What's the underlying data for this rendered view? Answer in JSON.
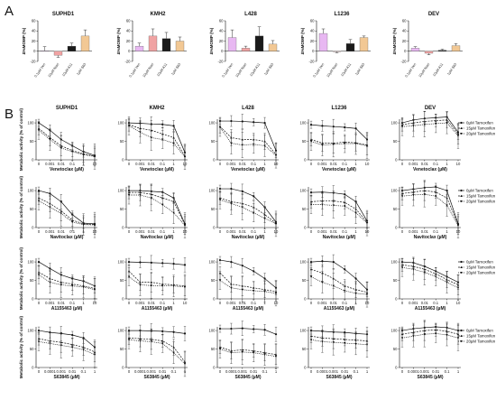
{
  "panels": {
    "a_label": "A",
    "b_label": "B"
  },
  "cell_lines": [
    "SUPHD1",
    "KMH2",
    "L428",
    "L1236",
    "DEV"
  ],
  "colors": {
    "bars": [
      "#f2c894",
      "#f0a3a3",
      "#1a1a1a",
      "#f2c894"
    ],
    "line": "#111111"
  },
  "chart_data": [
    {
      "panel": "A",
      "type": "bar",
      "ylabel": "∆%MOMP (%)",
      "ylim": [
        -20,
        60
      ],
      "yticks": [
        -20,
        0,
        20,
        40,
        60
      ],
      "categories": [
        "0.1µM Ven",
        "10µM Navi",
        "10µM A11",
        "1µM S63"
      ],
      "bar_colors": [
        "#e8b8f2",
        "#f0a3a3",
        "#1a1a1a",
        "#f2c894"
      ],
      "series": [
        {
          "cell_line": "SUPHD1",
          "values": [
            1,
            -8,
            10,
            30
          ],
          "errors": [
            8,
            4,
            6,
            12
          ]
        },
        {
          "cell_line": "KMH2",
          "values": [
            10,
            30,
            25,
            20
          ],
          "errors": [
            6,
            14,
            12,
            8
          ]
        },
        {
          "cell_line": "L428",
          "values": [
            27,
            6,
            30,
            14
          ],
          "errors": [
            15,
            4,
            18,
            7
          ]
        },
        {
          "cell_line": "L1236",
          "values": [
            35,
            -1,
            15,
            27
          ],
          "errors": [
            9,
            2,
            8,
            3
          ]
        },
        {
          "cell_line": "DEV",
          "values": [
            6,
            -4,
            2,
            11
          ],
          "errors": [
            3,
            3,
            2,
            4
          ]
        }
      ]
    },
    {
      "panel": "B",
      "type": "line",
      "ylabel": "Metabolic activity (% of control)",
      "legend": [
        "0µM Tamoxifen",
        "15µM Tamoxifen",
        "20µM Tamoxifen"
      ],
      "legend_position": "right",
      "ylim": [
        0,
        100
      ],
      "yticks": [
        0,
        50,
        100
      ],
      "rows": [
        {
          "drug": "Venetoclax (µM)",
          "x": [
            "0",
            "0.001",
            "0.01",
            "0.1",
            "1",
            "10"
          ],
          "series": {
            "SUPHD1": [
              [
                100,
                80,
                55,
                38,
                22,
                12
              ],
              [
                85,
                60,
                38,
                25,
                16,
                10
              ],
              [
                80,
                55,
                32,
                22,
                14,
                9
              ]
            ],
            "KMH2": [
              [
                100,
                99,
                97,
                96,
                92,
                20
              ],
              [
                95,
                85,
                80,
                70,
                60,
                10
              ],
              [
                92,
                75,
                60,
                55,
                45,
                8
              ]
            ],
            "L428": [
              [
                105,
                105,
                104,
                102,
                100,
                25
              ],
              [
                90,
                60,
                55,
                55,
                50,
                15
              ],
              [
                88,
                45,
                40,
                42,
                38,
                12
              ]
            ],
            "L1236": [
              [
                95,
                92,
                90,
                88,
                85,
                55
              ],
              [
                55,
                45,
                45,
                48,
                46,
                40
              ],
              [
                50,
                40,
                42,
                44,
                44,
                38
              ]
            ],
            "DEV": [
              [
                100,
                108,
                112,
                114,
                116,
                75
              ],
              [
                95,
                100,
                104,
                106,
                108,
                70
              ],
              [
                90,
                92,
                96,
                98,
                100,
                65
              ]
            ]
          }
        },
        {
          "drug": "Navitoclax (µM)",
          "x": [
            "0",
            "0.001",
            "0.01",
            "0.1",
            "1",
            "10"
          ],
          "series": {
            "SUPHD1": [
              [
                100,
                92,
                70,
                35,
                12,
                10
              ],
              [
                80,
                65,
                45,
                20,
                10,
                8
              ],
              [
                72,
                55,
                38,
                15,
                8,
                7
              ]
            ],
            "KMH2": [
              [
                100,
                100,
                98,
                96,
                80,
                10
              ],
              [
                95,
                95,
                90,
                80,
                70,
                8
              ],
              [
                88,
                88,
                80,
                62,
                40,
                6
              ]
            ],
            "L428": [
              [
                105,
                105,
                98,
                85,
                55,
                15
              ],
              [
                80,
                70,
                65,
                55,
                35,
                12
              ],
              [
                75,
                65,
                55,
                40,
                25,
                10
              ]
            ],
            "L1236": [
              [
                95,
                96,
                94,
                90,
                70,
                18
              ],
              [
                70,
                72,
                72,
                68,
                50,
                15
              ],
              [
                62,
                62,
                60,
                58,
                40,
                12
              ]
            ],
            "DEV": [
              [
                100,
                104,
                108,
                110,
                100,
                10
              ],
              [
                92,
                96,
                100,
                96,
                80,
                8
              ],
              [
                85,
                88,
                90,
                85,
                60,
                6
              ]
            ]
          }
        },
        {
          "drug": "A1155463 (µM)",
          "x": [
            "0",
            "0.001",
            "0.01",
            "0.1",
            "1",
            "10"
          ],
          "series": {
            "SUPHD1": [
              [
                100,
                82,
                65,
                55,
                48,
                35
              ],
              [
                72,
                55,
                45,
                40,
                35,
                28
              ],
              [
                65,
                45,
                38,
                35,
                32,
                25
              ]
            ],
            "KMH2": [
              [
                100,
                99,
                98,
                97,
                95,
                92
              ],
              [
                75,
                45,
                45,
                40,
                38,
                35
              ],
              [
                60,
                38,
                36,
                35,
                35,
                32
              ]
            ],
            "L428": [
              [
                105,
                100,
                90,
                75,
                55,
                30
              ],
              [
                70,
                40,
                35,
                30,
                25,
                20
              ],
              [
                50,
                30,
                25,
                22,
                20,
                15
              ]
            ],
            "L1236": [
              [
                100,
                102,
                100,
                80,
                55,
                25
              ],
              [
                80,
                70,
                55,
                35,
                25,
                18
              ],
              [
                60,
                45,
                35,
                22,
                15,
                12
              ]
            ],
            "DEV": [
              [
                100,
                98,
                88,
                75,
                60,
                45
              ],
              [
                92,
                88,
                80,
                68,
                52,
                38
              ],
              [
                85,
                80,
                72,
                60,
                45,
                30
              ]
            ]
          }
        },
        {
          "drug": "S63845 (µM)",
          "x": [
            "0",
            "0.0001",
            "0.001",
            "0.01",
            "0.1",
            "1"
          ],
          "series": {
            "SUPHD1": [
              [
                100,
                95,
                92,
                88,
                80,
                55
              ],
              [
                78,
                72,
                68,
                62,
                55,
                42
              ],
              [
                70,
                65,
                60,
                55,
                48,
                35
              ]
            ],
            "KMH2": [
              [
                100,
                100,
                99,
                98,
                96,
                92
              ],
              [
                80,
                78,
                76,
                72,
                55,
                15
              ],
              [
                75,
                72,
                70,
                65,
                40,
                10
              ]
            ],
            "L428": [
              [
                105,
                105,
                106,
                104,
                102,
                90
              ],
              [
                55,
                45,
                48,
                45,
                40,
                35
              ],
              [
                50,
                40,
                42,
                40,
                35,
                30
              ]
            ],
            "L1236": [
              [
                100,
                98,
                96,
                95,
                92,
                90
              ],
              [
                85,
                80,
                78,
                76,
                74,
                72
              ],
              [
                75,
                70,
                68,
                66,
                64,
                62
              ]
            ],
            "DEV": [
              [
                100,
                105,
                108,
                110,
                108,
                100
              ],
              [
                90,
                95,
                100,
                102,
                98,
                90
              ],
              [
                80,
                85,
                90,
                92,
                88,
                80
              ]
            ]
          }
        }
      ]
    }
  ]
}
